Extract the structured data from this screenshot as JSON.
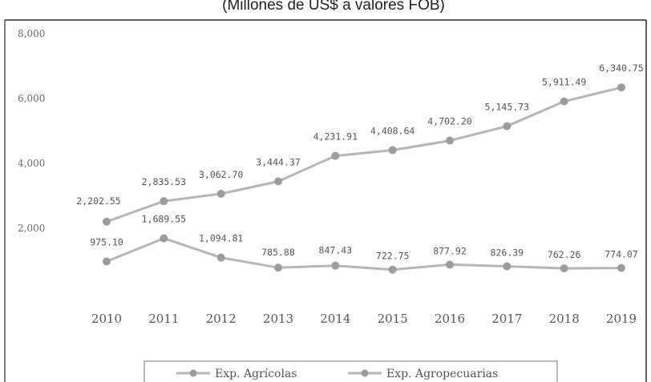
{
  "chart_data": {
    "type": "line",
    "title": "",
    "subtitle": "(Millones de US$ a valores FOB)",
    "xlabel": "",
    "ylabel": "",
    "x": [
      "2010",
      "2011",
      "2012",
      "2013",
      "2014",
      "2015",
      "2016",
      "2017",
      "2018",
      "2019"
    ],
    "ylim": [
      0,
      8000
    ],
    "y_ticks": [
      "8,000",
      "6,000",
      "4,000",
      "2,000"
    ],
    "grid": false,
    "legend_position": "bottom",
    "colors": {
      "line": "#b5b5b5",
      "marker": "#9c9c9c",
      "frame": "#2a2a2a"
    },
    "series": [
      {
        "name": "Exp. Agrícolas",
        "values": [
          975.1,
          1689.55,
          1094.81,
          785.88,
          847.43,
          722.75,
          877.92,
          826.39,
          762.26,
          774.07
        ],
        "labels": [
          "975.10",
          "1,689.55",
          "1,094.81",
          "785.88",
          "847.43",
          "722.75",
          "877.92",
          "826.39",
          "762.26",
          "774.07"
        ]
      },
      {
        "name": "Exp. Agropecuarias",
        "values": [
          2202.55,
          2835.53,
          3062.7,
          3444.37,
          4231.91,
          4408.64,
          4702.2,
          5145.73,
          5911.49,
          6340.75
        ],
        "labels": [
          "2,202.55",
          "2,835.53",
          "3,062.70",
          "3,444.37",
          "4,231.91",
          "4,408.64",
          "4,702.20",
          "5,145.73",
          "5,911.49",
          "6,340.75"
        ]
      }
    ]
  }
}
